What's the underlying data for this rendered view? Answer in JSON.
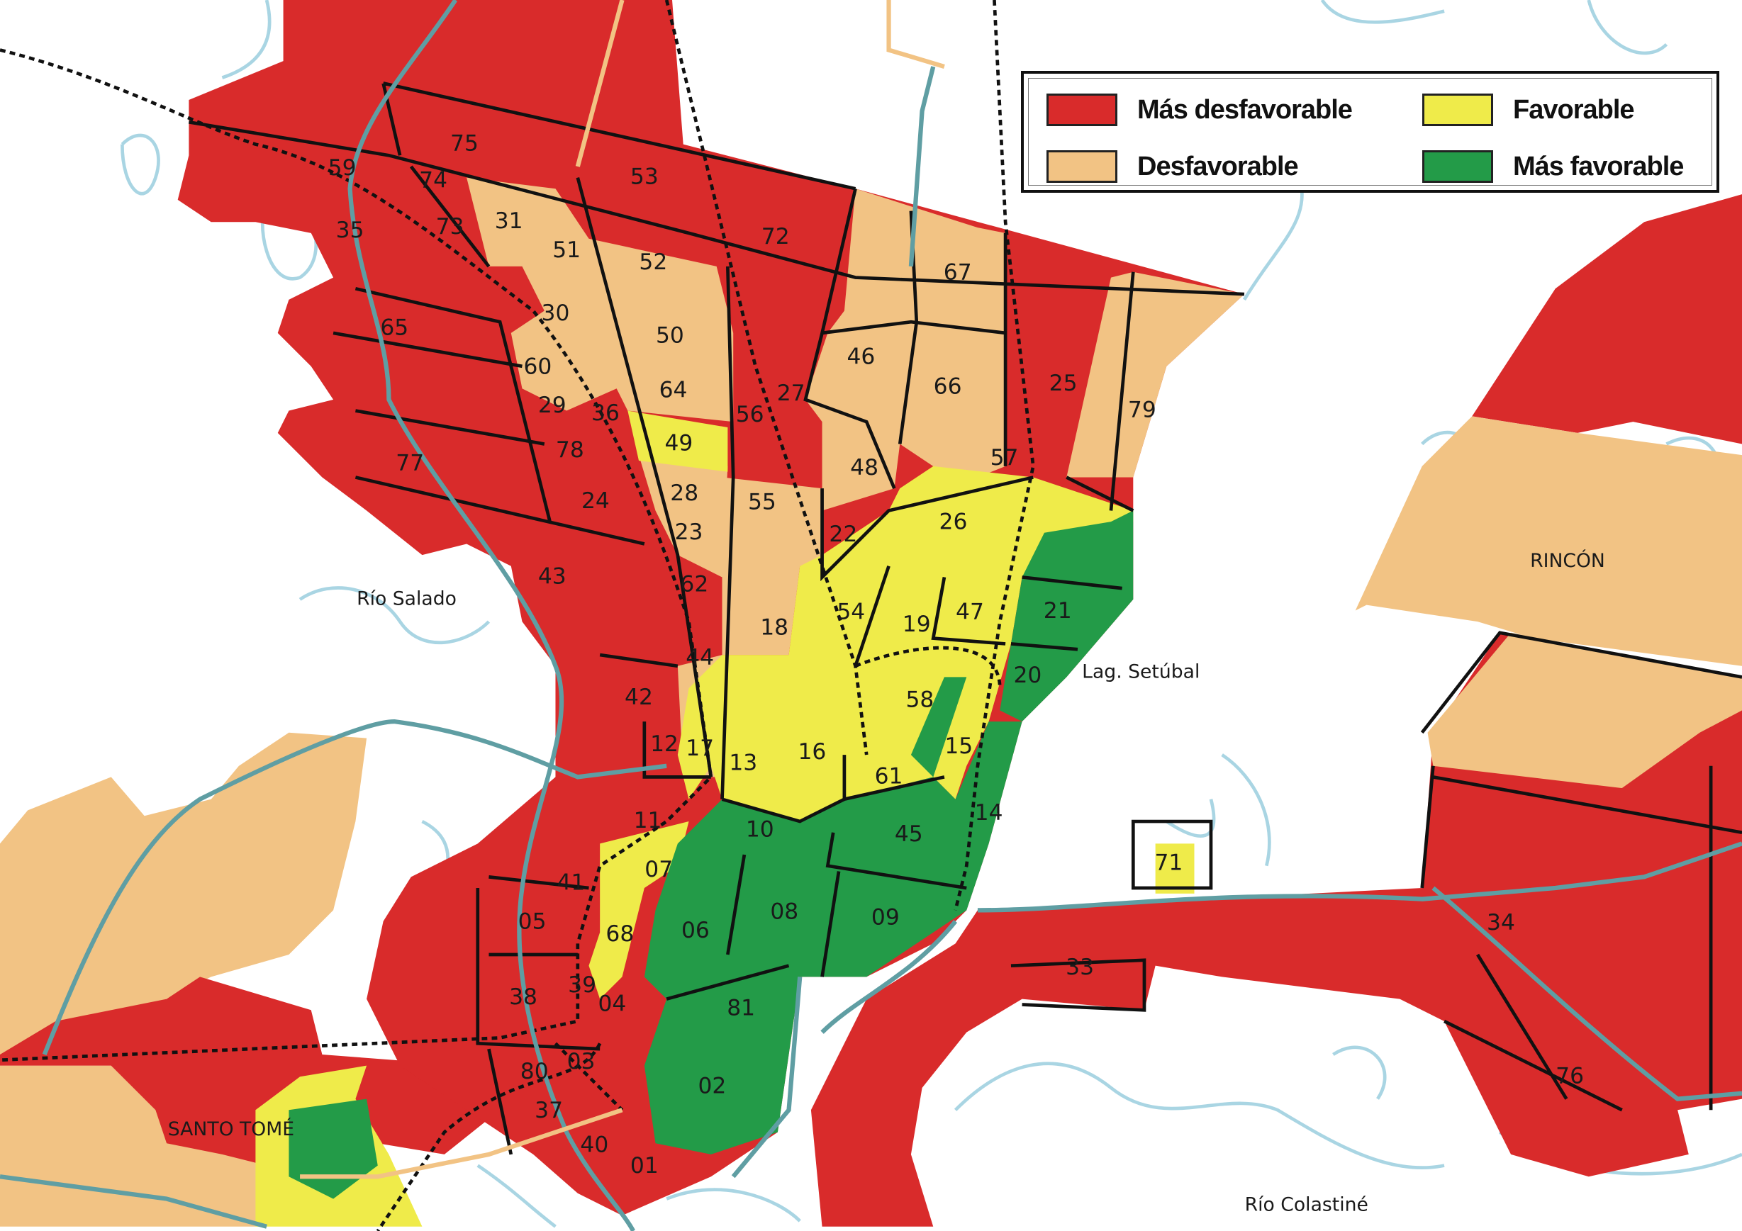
{
  "colors": {
    "mas_desfavorable": "#d92b2b",
    "desfavorable": "#f2c384",
    "favorable": "#efeb4a",
    "mas_favorable": "#239b48",
    "water_outline": "#a9d5e3",
    "roads": "#5f9ea3",
    "boundary": "#111111"
  },
  "legend": {
    "items": [
      {
        "label": "Más desfavorable",
        "color": "#d92b2b"
      },
      {
        "label": "Desfavorable",
        "color": "#f2c384"
      },
      {
        "label": "Favorable",
        "color": "#efeb4a"
      },
      {
        "label": "Más favorable",
        "color": "#239b48"
      }
    ]
  },
  "places": [
    "Río Salado",
    "Lag. Setúbal",
    "RINCÓN",
    "SANTO TOMÉ",
    "Río Colastiné"
  ],
  "zones": [
    "75",
    "74",
    "73",
    "59",
    "35",
    "31",
    "51",
    "53",
    "72",
    "52",
    "67",
    "30",
    "65",
    "50",
    "46",
    "66",
    "25",
    "79",
    "60",
    "29",
    "36",
    "64",
    "56",
    "27",
    "49",
    "78",
    "77",
    "48",
    "57",
    "28",
    "55",
    "24",
    "22",
    "26",
    "23",
    "62",
    "43",
    "21",
    "54",
    "19",
    "47",
    "18",
    "44",
    "20",
    "58",
    "42",
    "12",
    "17",
    "13",
    "16",
    "15",
    "61",
    "14",
    "11",
    "10",
    "45",
    "07",
    "41",
    "71",
    "05",
    "08",
    "09",
    "06",
    "68",
    "34",
    "33",
    "38",
    "39",
    "04",
    "81",
    "80",
    "03",
    "02",
    "37",
    "76",
    "40",
    "01"
  ]
}
